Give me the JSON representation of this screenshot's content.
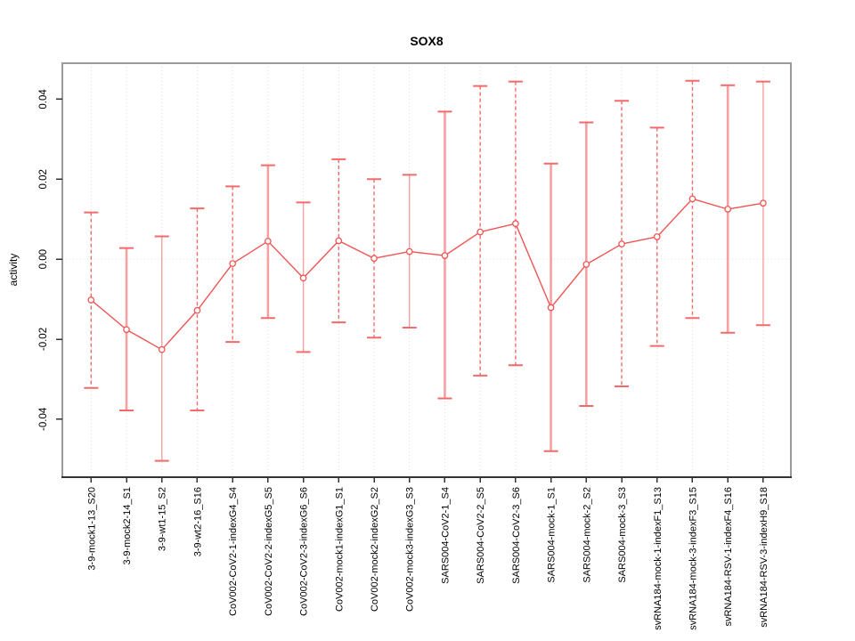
{
  "figure": {
    "title": "SOX8",
    "y_axis_label": "activity"
  },
  "chart_data": {
    "type": "line",
    "subtype": "points-with-error-bars",
    "title": "SOX8",
    "xlabel": "",
    "ylabel": "activity",
    "ylim": [
      -0.0545,
      0.049
    ],
    "yticks": [
      -0.04,
      -0.02,
      0,
      0.02,
      0.04
    ],
    "ytick_labels": [
      "-0.04",
      "-0.02",
      "0.00",
      "0.02",
      "0.04"
    ],
    "grid": "vertical dotted gridline per category; dotted horizontal line at y=0",
    "legend_position": "none",
    "categories": [
      "3-9-mock1-13_S20",
      "3-9-mock2-14_S1",
      "3-9-wt1-15_S2",
      "3-9-wt2-16_S16",
      "CoV002-CoV2-1-indexG4_S4",
      "CoV002-CoV2-2-indexG5_S5",
      "CoV002-CoV2-3-indexG6_S6",
      "CoV002-mock1-indexG1_S1",
      "CoV002-mock2-indexG2_S2",
      "CoV002-mock3-indexG3_S3",
      "SARS004-CoV2-1_S4",
      "SARS004-CoV2-2_S5",
      "SARS004-CoV2-3_S6",
      "SARS004-mock-1_S1",
      "SARS004-mock-2_S2",
      "SARS004-mock-3_S3",
      "svRNA184-mock-1-indexF1_S13",
      "svRNA184-mock-3-indexF3_S15",
      "svRNA184-RSV-1-indexF4_S16",
      "svRNA184-RSV-3-indexH9_S18"
    ],
    "series": [
      {
        "name": "activity",
        "points": [
          {
            "category": "3-9-mock1-13_S20",
            "value": -0.0102,
            "err_low": -0.0322,
            "err_high": 0.0117,
            "bar_style": "dashed"
          },
          {
            "category": "3-9-mock2-14_S1",
            "value": -0.0176,
            "err_low": -0.0378,
            "err_high": 0.0028,
            "bar_style": "solid-thick"
          },
          {
            "category": "3-9-wt1-15_S2",
            "value": -0.0226,
            "err_low": -0.0504,
            "err_high": 0.0057,
            "bar_style": "solid"
          },
          {
            "category": "3-9-wt2-16_S16",
            "value": -0.0128,
            "err_low": -0.0378,
            "err_high": 0.0127,
            "bar_style": "dashed"
          },
          {
            "category": "CoV002-CoV2-1-indexG4_S4",
            "value": -0.0011,
            "err_low": -0.0207,
            "err_high": 0.0182,
            "bar_style": "dashed"
          },
          {
            "category": "CoV002-CoV2-2-indexG5_S5",
            "value": 0.0045,
            "err_low": -0.0147,
            "err_high": 0.0235,
            "bar_style": "solid-thick"
          },
          {
            "category": "CoV002-CoV2-3-indexG6_S6",
            "value": -0.0047,
            "err_low": -0.0232,
            "err_high": 0.0142,
            "bar_style": "solid"
          },
          {
            "category": "CoV002-mock1-indexG1_S1",
            "value": 0.0046,
            "err_low": -0.0158,
            "err_high": 0.025,
            "bar_style": "dashed"
          },
          {
            "category": "CoV002-mock2-indexG2_S2",
            "value": 0.0002,
            "err_low": -0.0196,
            "err_high": 0.02,
            "bar_style": "dashed"
          },
          {
            "category": "CoV002-mock3-indexG3_S3",
            "value": 0.0019,
            "err_low": -0.0171,
            "err_high": 0.0211,
            "bar_style": "solid"
          },
          {
            "category": "SARS004-CoV2-1_S4",
            "value": 0.0009,
            "err_low": -0.0348,
            "err_high": 0.0369,
            "bar_style": "solid-thick"
          },
          {
            "category": "SARS004-CoV2-2_S5",
            "value": 0.0068,
            "err_low": -0.0291,
            "err_high": 0.0433,
            "bar_style": "dashed"
          },
          {
            "category": "SARS004-CoV2-3_S6",
            "value": 0.0089,
            "err_low": -0.0265,
            "err_high": 0.0444,
            "bar_style": "dashed"
          },
          {
            "category": "SARS004-mock-1_S1",
            "value": -0.0121,
            "err_low": -0.048,
            "err_high": 0.0239,
            "bar_style": "solid-thick"
          },
          {
            "category": "SARS004-mock-2_S2",
            "value": -0.0013,
            "err_low": -0.0367,
            "err_high": 0.0342,
            "bar_style": "solid-thick"
          },
          {
            "category": "SARS004-mock-3_S3",
            "value": 0.0038,
            "err_low": -0.0318,
            "err_high": 0.0396,
            "bar_style": "dashed"
          },
          {
            "category": "svRNA184-mock-1-indexF1_S13",
            "value": 0.0056,
            "err_low": -0.0217,
            "err_high": 0.0329,
            "bar_style": "dashed"
          },
          {
            "category": "svRNA184-mock-3-indexF3_S15",
            "value": 0.0151,
            "err_low": -0.0147,
            "err_high": 0.0446,
            "bar_style": "dashed"
          },
          {
            "category": "svRNA184-RSV-1-indexF4_S16",
            "value": 0.0125,
            "err_low": -0.0184,
            "err_high": 0.0435,
            "bar_style": "solid-thick"
          },
          {
            "category": "svRNA184-RSV-3-indexH9_S18",
            "value": 0.014,
            "err_low": -0.0165,
            "err_high": 0.0444,
            "bar_style": "solid"
          }
        ]
      }
    ]
  },
  "style": {
    "line_color": "#f05454",
    "marker_fill": "#ffffff",
    "error_bar_solid_color": "#f8a0a0",
    "error_bar_dashed_color": "#f26a6a",
    "cap_color": "#f26a6a",
    "grid_color": "#dcdcdc",
    "box_color": "#9a9a9a",
    "axis_color": "#333333",
    "text_color": "#000000",
    "background": "#ffffff"
  }
}
